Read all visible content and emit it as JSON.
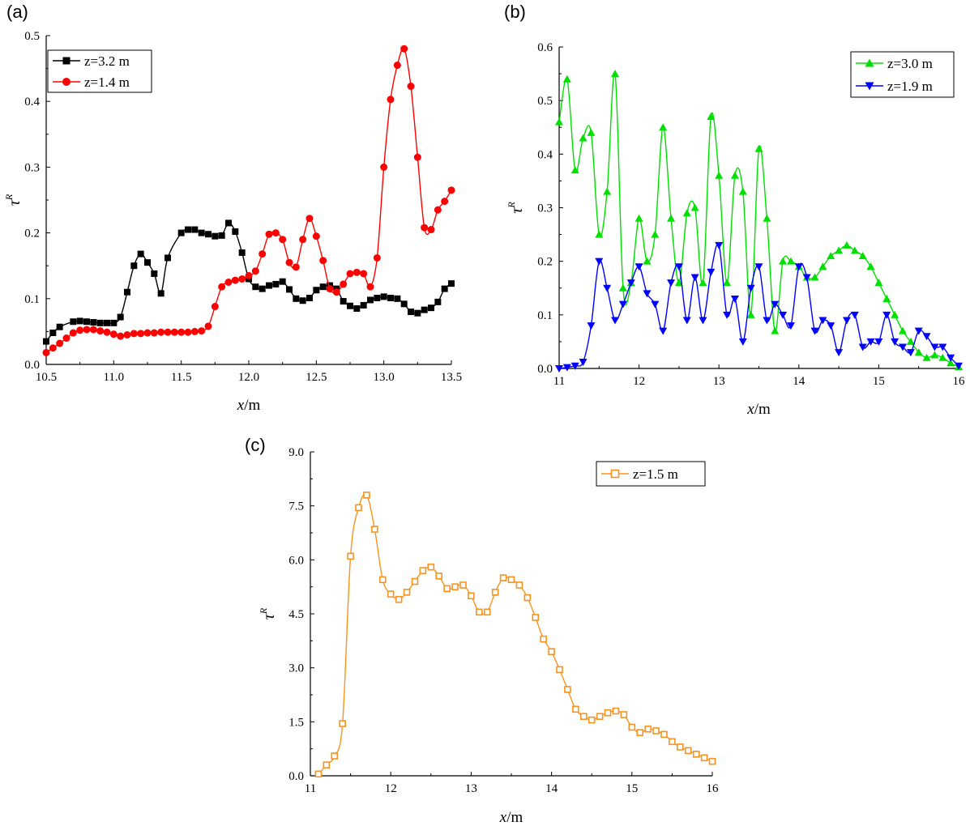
{
  "panels": [
    {
      "label": "(a)"
    },
    {
      "label": "(b)"
    },
    {
      "label": "(c)"
    }
  ],
  "chart_data": [
    {
      "type": "line",
      "panel": "(a)",
      "xlabel": "x/m",
      "ylabel": "τ^R",
      "xlim": [
        10.5,
        13.5
      ],
      "ylim": [
        0.0,
        0.5
      ],
      "xticks": [
        "10.5",
        "11.0",
        "11.5",
        "12.0",
        "12.5",
        "13.0",
        "13.5"
      ],
      "yticks": [
        "0.0",
        "0.1",
        "0.2",
        "0.3",
        "0.4",
        "0.5"
      ],
      "legend_position": "top-left",
      "series": [
        {
          "name": "z=3.2 m",
          "color": "#000000",
          "marker": "square",
          "x": [
            10.5,
            10.55,
            10.6,
            10.7,
            10.75,
            10.8,
            10.85,
            10.9,
            10.95,
            11.0,
            11.05,
            11.1,
            11.15,
            11.2,
            11.25,
            11.3,
            11.35,
            11.4,
            11.5,
            11.55,
            11.6,
            11.65,
            11.7,
            11.75,
            11.8,
            11.85,
            11.9,
            11.95,
            12.0,
            12.05,
            12.1,
            12.15,
            12.2,
            12.25,
            12.3,
            12.35,
            12.4,
            12.45,
            12.5,
            12.55,
            12.6,
            12.65,
            12.7,
            12.75,
            12.8,
            12.85,
            12.9,
            12.95,
            13.0,
            13.05,
            13.1,
            13.15,
            13.2,
            13.25,
            13.3,
            13.35,
            13.4,
            13.45,
            13.5
          ],
          "y": [
            0.035,
            0.048,
            0.057,
            0.065,
            0.066,
            0.065,
            0.064,
            0.063,
            0.063,
            0.063,
            0.072,
            0.11,
            0.15,
            0.168,
            0.155,
            0.138,
            0.108,
            0.162,
            0.2,
            0.205,
            0.205,
            0.2,
            0.198,
            0.195,
            0.196,
            0.215,
            0.202,
            0.17,
            0.13,
            0.118,
            0.115,
            0.12,
            0.122,
            0.126,
            0.114,
            0.1,
            0.097,
            0.101,
            0.113,
            0.118,
            0.12,
            0.115,
            0.096,
            0.089,
            0.085,
            0.09,
            0.098,
            0.101,
            0.103,
            0.101,
            0.1,
            0.092,
            0.08,
            0.078,
            0.083,
            0.086,
            0.095,
            0.115,
            0.123
          ]
        },
        {
          "name": "z=1.4 m",
          "color": "#ff0000",
          "marker": "circle",
          "x": [
            10.5,
            10.55,
            10.6,
            10.65,
            10.7,
            10.75,
            10.8,
            10.85,
            10.9,
            10.95,
            11.0,
            11.05,
            11.1,
            11.15,
            11.2,
            11.25,
            11.3,
            11.35,
            11.4,
            11.45,
            11.5,
            11.55,
            11.6,
            11.65,
            11.7,
            11.75,
            11.8,
            11.85,
            11.9,
            11.95,
            12.0,
            12.05,
            12.1,
            12.15,
            12.2,
            12.25,
            12.3,
            12.35,
            12.4,
            12.45,
            12.5,
            12.55,
            12.6,
            12.65,
            12.7,
            12.75,
            12.8,
            12.85,
            12.9,
            12.95,
            13.0,
            13.05,
            13.1,
            13.15,
            13.2,
            13.25,
            13.3,
            13.35,
            13.4,
            13.45,
            13.5
          ],
          "y": [
            0.018,
            0.025,
            0.032,
            0.04,
            0.048,
            0.052,
            0.053,
            0.053,
            0.051,
            0.049,
            0.046,
            0.043,
            0.045,
            0.047,
            0.047,
            0.048,
            0.048,
            0.049,
            0.049,
            0.049,
            0.049,
            0.049,
            0.05,
            0.051,
            0.058,
            0.088,
            0.118,
            0.125,
            0.128,
            0.13,
            0.135,
            0.142,
            0.168,
            0.198,
            0.2,
            0.19,
            0.155,
            0.148,
            0.19,
            0.222,
            0.195,
            0.158,
            0.115,
            0.11,
            0.122,
            0.138,
            0.14,
            0.138,
            0.118,
            0.162,
            0.3,
            0.403,
            0.455,
            0.48,
            0.423,
            0.315,
            0.208,
            0.205,
            0.235,
            0.248,
            0.265
          ]
        }
      ]
    },
    {
      "type": "line",
      "panel": "(b)",
      "xlabel": "x/m",
      "ylabel": "τ^R",
      "xlim": [
        11,
        16
      ],
      "ylim": [
        0.0,
        0.6
      ],
      "xticks": [
        "11",
        "12",
        "13",
        "14",
        "15",
        "16"
      ],
      "yticks": [
        "0.0",
        "0.1",
        "0.2",
        "0.3",
        "0.4",
        "0.5",
        "0.6"
      ],
      "legend_position": "top-right",
      "series": [
        {
          "name": "z=3.0 m",
          "color": "#00e000",
          "marker": "triangle-up",
          "x": [
            11.0,
            11.1,
            11.2,
            11.3,
            11.4,
            11.5,
            11.6,
            11.7,
            11.8,
            11.9,
            12.0,
            12.1,
            12.2,
            12.3,
            12.4,
            12.5,
            12.6,
            12.7,
            12.8,
            12.9,
            13.0,
            13.1,
            13.2,
            13.3,
            13.4,
            13.5,
            13.6,
            13.7,
            13.8,
            13.9,
            14.0,
            14.1,
            14.2,
            14.3,
            14.4,
            14.5,
            14.6,
            14.7,
            14.8,
            14.9,
            15.0,
            15.1,
            15.2,
            15.3,
            15.4,
            15.5,
            15.6,
            15.7,
            15.8,
            15.9,
            16.0
          ],
          "y": [
            0.46,
            0.54,
            0.37,
            0.43,
            0.44,
            0.25,
            0.33,
            0.55,
            0.15,
            0.16,
            0.28,
            0.2,
            0.25,
            0.45,
            0.28,
            0.16,
            0.29,
            0.3,
            0.16,
            0.47,
            0.36,
            0.16,
            0.36,
            0.33,
            0.1,
            0.41,
            0.28,
            0.07,
            0.2,
            0.2,
            0.19,
            0.17,
            0.17,
            0.19,
            0.21,
            0.22,
            0.23,
            0.22,
            0.21,
            0.19,
            0.16,
            0.13,
            0.1,
            0.07,
            0.05,
            0.03,
            0.02,
            0.025,
            0.02,
            0.01,
            0.003
          ]
        },
        {
          "name": "z=1.9 m",
          "color": "#0000ff",
          "marker": "triangle-down",
          "x": [
            11.0,
            11.1,
            11.2,
            11.3,
            11.4,
            11.5,
            11.6,
            11.7,
            11.8,
            11.9,
            12.0,
            12.1,
            12.2,
            12.3,
            12.4,
            12.5,
            12.6,
            12.7,
            12.8,
            12.9,
            13.0,
            13.1,
            13.2,
            13.3,
            13.4,
            13.5,
            13.6,
            13.7,
            13.8,
            13.9,
            14.0,
            14.1,
            14.2,
            14.3,
            14.4,
            14.5,
            14.6,
            14.7,
            14.8,
            14.9,
            15.0,
            15.1,
            15.2,
            15.3,
            15.4,
            15.5,
            15.6,
            15.7,
            15.8,
            15.9,
            16.0
          ],
          "y": [
            0.0,
            0.002,
            0.005,
            0.012,
            0.08,
            0.2,
            0.15,
            0.09,
            0.12,
            0.16,
            0.19,
            0.14,
            0.12,
            0.07,
            0.16,
            0.19,
            0.09,
            0.17,
            0.09,
            0.18,
            0.23,
            0.1,
            0.13,
            0.05,
            0.15,
            0.19,
            0.09,
            0.12,
            0.1,
            0.08,
            0.19,
            0.17,
            0.07,
            0.09,
            0.08,
            0.03,
            0.09,
            0.1,
            0.04,
            0.05,
            0.05,
            0.1,
            0.05,
            0.04,
            0.03,
            0.07,
            0.06,
            0.04,
            0.04,
            0.02,
            0.005
          ]
        }
      ]
    },
    {
      "type": "line",
      "panel": "(c)",
      "xlabel": "x/m",
      "ylabel": "τ^R",
      "xlim": [
        11,
        16
      ],
      "ylim": [
        0.0,
        9.0
      ],
      "xticks": [
        "11",
        "12",
        "13",
        "14",
        "15",
        "16"
      ],
      "yticks": [
        "0.0",
        "1.5",
        "3.0",
        "4.5",
        "6.0",
        "7.5",
        "9.0"
      ],
      "legend_position": "top-right",
      "series": [
        {
          "name": "z=1.5 m",
          "color": "#f7931e",
          "marker": "square-open",
          "x": [
            11.1,
            11.2,
            11.3,
            11.4,
            11.5,
            11.6,
            11.7,
            11.8,
            11.9,
            12.0,
            12.1,
            12.2,
            12.3,
            12.4,
            12.5,
            12.6,
            12.7,
            12.8,
            12.9,
            13.0,
            13.1,
            13.2,
            13.3,
            13.4,
            13.5,
            13.6,
            13.7,
            13.8,
            13.9,
            14.0,
            14.1,
            14.2,
            14.3,
            14.4,
            14.5,
            14.6,
            14.7,
            14.8,
            14.9,
            15.0,
            15.1,
            15.2,
            15.3,
            15.4,
            15.5,
            15.6,
            15.7,
            15.8,
            15.9,
            16.0
          ],
          "y": [
            0.05,
            0.3,
            0.55,
            1.45,
            6.1,
            7.45,
            7.8,
            6.85,
            5.45,
            5.05,
            4.9,
            5.1,
            5.4,
            5.7,
            5.8,
            5.55,
            5.2,
            5.25,
            5.3,
            5.0,
            4.55,
            4.55,
            5.1,
            5.5,
            5.45,
            5.3,
            4.95,
            4.4,
            3.8,
            3.45,
            2.95,
            2.4,
            1.85,
            1.65,
            1.55,
            1.65,
            1.75,
            1.8,
            1.7,
            1.35,
            1.2,
            1.3,
            1.25,
            1.15,
            0.95,
            0.8,
            0.7,
            0.6,
            0.5,
            0.4
          ]
        }
      ]
    }
  ]
}
